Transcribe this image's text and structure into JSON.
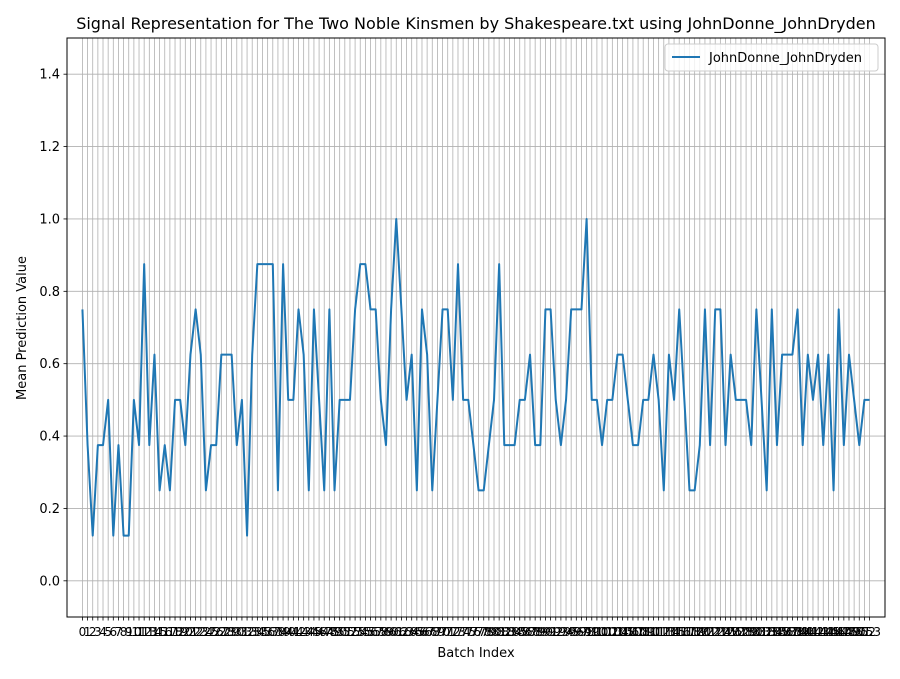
{
  "chart_data": {
    "type": "line",
    "title": "Signal Representation for The Two Noble Kinsmen by Shakespeare.txt using JohnDonne_JohnDryden",
    "xlabel": "Batch Index",
    "ylabel": "Mean Prediction Value",
    "xlim": [
      -3.0,
      156.0
    ],
    "ylim": [
      -0.1,
      1.5
    ],
    "yticks": [
      0.0,
      0.2,
      0.4,
      0.6,
      0.8,
      1.0,
      1.2,
      1.4
    ],
    "grid": true,
    "legend_position": "top-right",
    "line_color": "#1f77b4",
    "series": [
      {
        "name": "JohnDonne_JohnDryden",
        "x": [
          0,
          1,
          2,
          3,
          4,
          5,
          6,
          7,
          8,
          9,
          10,
          11,
          12,
          13,
          14,
          15,
          16,
          17,
          18,
          19,
          20,
          21,
          22,
          23,
          24,
          25,
          26,
          27,
          28,
          29,
          30,
          31,
          32,
          33,
          34,
          35,
          36,
          37,
          38,
          39,
          40,
          41,
          42,
          43,
          44,
          45,
          46,
          47,
          48,
          49,
          50,
          51,
          52,
          53,
          54,
          55,
          56,
          57,
          58,
          59,
          60,
          61,
          62,
          63,
          64,
          65,
          66,
          67,
          68,
          69,
          70,
          71,
          72,
          73,
          74,
          75,
          76,
          77,
          78,
          79,
          80,
          81,
          82,
          83,
          84,
          85,
          86,
          87,
          88,
          89,
          90,
          91,
          92,
          93,
          94,
          95,
          96,
          97,
          98,
          99,
          100,
          101,
          102,
          103,
          104,
          105,
          106,
          107,
          108,
          109,
          110,
          111,
          112,
          113,
          114,
          115,
          116,
          117,
          118,
          119,
          120,
          121,
          122,
          123,
          124,
          125,
          126,
          127,
          128,
          129,
          130,
          131,
          132,
          133,
          134,
          135,
          136,
          137,
          138,
          139,
          140,
          141,
          142,
          143,
          144,
          145,
          146,
          147,
          148,
          149,
          150,
          151,
          152,
          153
        ],
        "values": [
          0.75,
          0.375,
          0.125,
          0.375,
          0.375,
          0.5,
          0.125,
          0.375,
          0.125,
          0.125,
          0.5,
          0.375,
          0.875,
          0.375,
          0.625,
          0.25,
          0.375,
          0.25,
          0.5,
          0.5,
          0.375,
          0.625,
          0.75,
          0.625,
          0.25,
          0.375,
          0.375,
          0.625,
          0.625,
          0.625,
          0.375,
          0.5,
          0.125,
          0.625,
          0.875,
          0.875,
          0.875,
          0.875,
          0.25,
          0.875,
          0.5,
          0.5,
          0.75,
          0.625,
          0.25,
          0.75,
          0.5,
          0.25,
          0.75,
          0.25,
          0.5,
          0.5,
          0.5,
          0.75,
          0.875,
          0.875,
          0.75,
          0.75,
          0.5,
          0.375,
          0.75,
          1.0,
          0.75,
          0.5,
          0.625,
          0.25,
          0.75,
          0.625,
          0.25,
          0.5,
          0.75,
          0.75,
          0.5,
          0.875,
          0.5,
          0.5,
          0.375,
          0.25,
          0.25,
          0.375,
          0.5,
          0.875,
          0.375,
          0.375,
          0.375,
          0.5,
          0.5,
          0.625,
          0.375,
          0.375,
          0.75,
          0.75,
          0.5,
          0.375,
          0.5,
          0.75,
          0.75,
          0.75,
          1.0,
          0.5,
          0.5,
          0.375,
          0.5,
          0.5,
          0.625,
          0.625,
          0.5,
          0.375,
          0.375,
          0.5,
          0.5,
          0.625,
          0.5,
          0.25,
          0.625,
          0.5,
          0.75,
          0.5,
          0.25,
          0.25,
          0.375,
          0.75,
          0.375,
          0.75,
          0.75,
          0.375,
          0.625,
          0.5,
          0.5,
          0.5,
          0.375,
          0.75,
          0.5,
          0.25,
          0.75,
          0.375,
          0.625,
          0.625,
          0.625,
          0.75,
          0.375,
          0.625,
          0.5,
          0.625,
          0.375,
          0.625,
          0.25,
          0.75,
          0.375,
          0.625,
          0.5,
          0.375,
          0.5,
          0.5
        ]
      }
    ]
  }
}
